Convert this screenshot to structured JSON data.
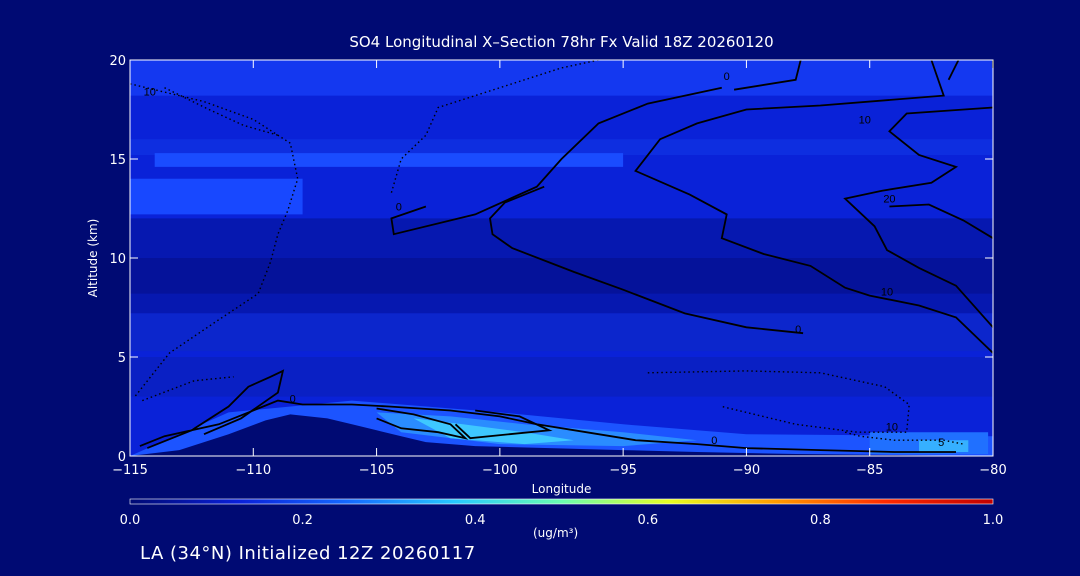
{
  "chart_data": {
    "type": "heatmap",
    "title": "SO4 Longitudinal X–Section 78hr  Fx Valid 18Z 20260120",
    "xlabel": "Longitude",
    "ylabel": "Altitude (km)",
    "xlim": [
      -115,
      -80
    ],
    "ylim": [
      0,
      20
    ],
    "x_ticks": [
      "−115",
      "−110",
      "−105",
      "−100",
      "−95",
      "−90",
      "−85",
      "−80"
    ],
    "x_tick_values": [
      -115,
      -110,
      -105,
      -100,
      -95,
      -90,
      -85,
      -80
    ],
    "y_ticks": [
      "0",
      "5",
      "10",
      "15",
      "20"
    ],
    "y_tick_values": [
      0,
      5,
      10,
      15,
      20
    ],
    "colorbar": {
      "min": 0.0,
      "max": 1.0,
      "tick_labels": [
        "0.0",
        "0.2",
        "0.4",
        "0.6",
        "0.8",
        "1.0"
      ],
      "tick_values": [
        0.0,
        0.2,
        0.4,
        0.6,
        0.8,
        1.0
      ],
      "units": "(ug/m³)",
      "colors": [
        "#000a73",
        "#0a20d8",
        "#1468ff",
        "#27c8ff",
        "#6affb0",
        "#e8ff22",
        "#ff9a00",
        "#ff2a00",
        "#c00000"
      ]
    },
    "contour_labels": [
      {
        "text": "10",
        "lon": -114.2,
        "alt": 18.2
      },
      {
        "text": "0",
        "lon": -90.8,
        "alt": 19.0
      },
      {
        "text": "10",
        "lon": -85.2,
        "alt": 16.8
      },
      {
        "text": "0",
        "lon": -104.1,
        "alt": 12.4
      },
      {
        "text": "20",
        "lon": -84.2,
        "alt": 12.8
      },
      {
        "text": "10",
        "lon": -84.3,
        "alt": 8.1
      },
      {
        "text": "0",
        "lon": -87.9,
        "alt": 6.2
      },
      {
        "text": "0",
        "lon": -108.4,
        "alt": 2.7
      },
      {
        "text": "0",
        "lon": -91.3,
        "alt": 0.6
      },
      {
        "text": "10",
        "lon": -84.1,
        "alt": 1.3
      },
      {
        "text": "5",
        "lon": -82.1,
        "alt": 0.5
      }
    ],
    "grid": false,
    "legend": "colorbar-bottom"
  },
  "footer": "LA (34°N) Initialized 12Z 20260117",
  "colors": {
    "background": "#000a73",
    "frame": "#ffffff",
    "contour": "#000000"
  }
}
